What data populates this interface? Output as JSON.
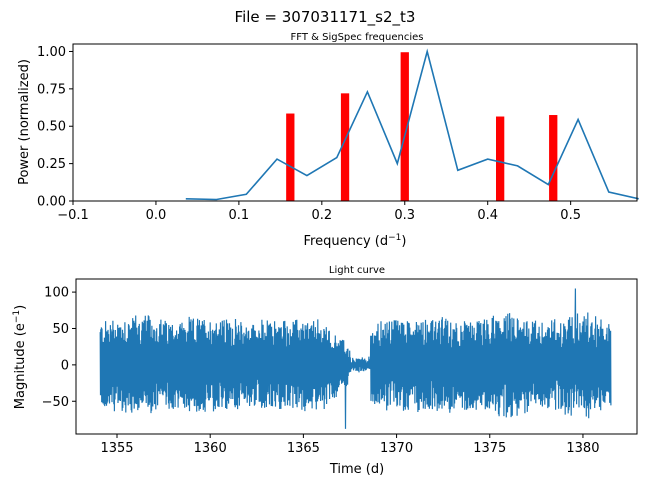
{
  "figure": {
    "suptitle": "File = 307031171_s2_t3"
  },
  "chart_data": [
    {
      "type": "bar+line",
      "title": "FFT & SigSpec frequencies",
      "xlabel": "Frequency (d$^{-1}$)",
      "xlabel_main": "Frequency (d",
      "xlabel_sup": "−1",
      "xlabel_close": ")",
      "ylabel": "Power (normalized)",
      "xlim": [
        -0.1,
        0.58
      ],
      "ylim": [
        0,
        1.05
      ],
      "xticks": [
        -0.1,
        0.0,
        0.1,
        0.2,
        0.3,
        0.4,
        0.5
      ],
      "xtick_labels": [
        "−0.1",
        "0.0",
        "0.1",
        "0.2",
        "0.3",
        "0.4",
        "0.5"
      ],
      "yticks": [
        0.0,
        0.25,
        0.5,
        0.75,
        1.0
      ],
      "ytick_labels": [
        "0.00",
        "0.25",
        "0.50",
        "0.75",
        "1.00"
      ],
      "grid": false,
      "bars": {
        "color": "#ff0000",
        "width": 0.01,
        "x": [
          0.162,
          0.228,
          0.3,
          0.415,
          0.479
        ],
        "values": [
          0.585,
          0.72,
          0.995,
          0.565,
          0.575
        ]
      },
      "line": {
        "color": "#1f77b4",
        "x": [
          0.036,
          0.073,
          0.109,
          0.146,
          0.182,
          0.218,
          0.255,
          0.291,
          0.327,
          0.364,
          0.4,
          0.436,
          0.473,
          0.509,
          0.546,
          0.582
        ],
        "values": [
          0.015,
          0.01,
          0.045,
          0.28,
          0.17,
          0.29,
          0.73,
          0.25,
          1.0,
          0.205,
          0.28,
          0.235,
          0.11,
          0.545,
          0.06,
          0.015
        ]
      }
    },
    {
      "type": "line",
      "title": "Light curve",
      "xlabel": "Time (d)",
      "ylabel": "Magnitude (e$^{-1}$)",
      "ylabel_main": "Magnitude (e",
      "ylabel_sup": "−1",
      "ylabel_close": ")",
      "xlim": [
        1352.8,
        1382.9
      ],
      "ylim": [
        -95,
        118
      ],
      "xticks": [
        1355,
        1360,
        1365,
        1370,
        1375,
        1380
      ],
      "xtick_labels": [
        "1355",
        "1360",
        "1365",
        "1370",
        "1375",
        "1380"
      ],
      "yticks": [
        -50,
        0,
        50,
        100
      ],
      "ytick_labels": [
        "−50",
        "0",
        "50",
        "100"
      ],
      "grid": false,
      "series": [
        {
          "color": "#1f77b4",
          "x_start": 1354.1,
          "x_end": 1381.5,
          "gap": [
            1367.5,
            1368.6
          ],
          "envelope_x": [
            1354.1,
            1356,
            1358,
            1360,
            1362,
            1364,
            1366,
            1367.5,
            1368.6,
            1370,
            1372,
            1374,
            1376,
            1378,
            1380,
            1381.5
          ],
          "envelope_amp": [
            60,
            70,
            60,
            66,
            58,
            62,
            60,
            25,
            55,
            65,
            65,
            60,
            70,
            58,
            75,
            55
          ],
          "max_value": 105,
          "min_value": -88
        }
      ]
    }
  ]
}
